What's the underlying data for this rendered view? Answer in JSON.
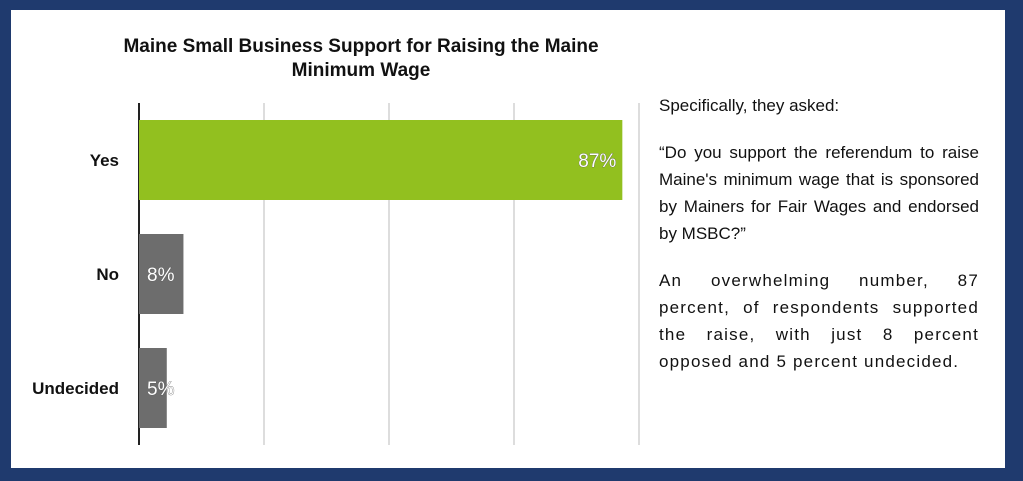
{
  "chart_data": {
    "type": "bar",
    "orientation": "horizontal",
    "title": "Maine Small Business Support for Raising the Maine Minimum Wage",
    "categories": [
      "Yes",
      "No",
      "Undecided"
    ],
    "values": [
      87,
      8,
      5
    ],
    "data_labels": [
      "87%",
      "8%",
      "5%"
    ],
    "xlim": [
      0,
      90
    ],
    "grid": true,
    "xlabel": "",
    "ylabel": ""
  },
  "colors": {
    "background": "#1f3a6e",
    "panel": "#ffffff",
    "yes_bar": "#92c01f",
    "other_bar": "#6d6d6d",
    "gridline": "#bbbbbb"
  },
  "text": {
    "intro": "Specifically, they asked:",
    "question": "“Do you support the referendum to raise Maine's minimum wage that is sponsored by Mainers for Fair Wages and endorsed by MSBC?”",
    "summary": "An overwhelming number, 87 percent, of respondents supported the raise, with just 8 percent opposed and 5 percent undecided."
  }
}
